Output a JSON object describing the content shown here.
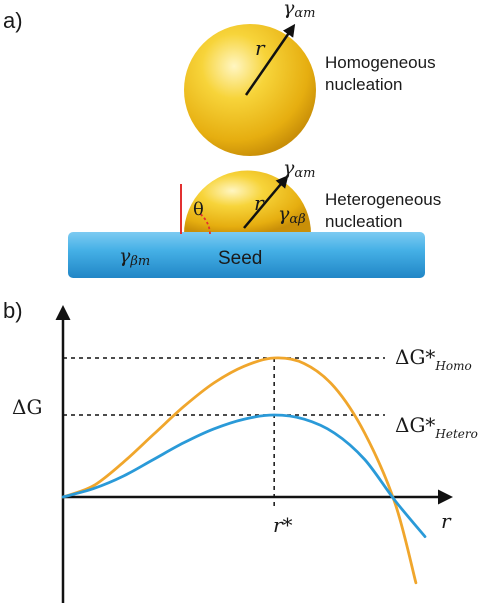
{
  "panel_a": {
    "label": "a)",
    "homogeneous": {
      "radius_label": "r",
      "gamma_label": "γ",
      "gamma_sub": "αm",
      "caption_line1": "Homogeneous",
      "caption_line2": "nucleation"
    },
    "heterogeneous": {
      "radius_label": "r",
      "gamma_top": "γ",
      "gamma_top_sub": "αm",
      "gamma_inner": "γ",
      "gamma_inner_sub": "αβ",
      "angle_label": "θ",
      "seed_gamma": "γ",
      "seed_gamma_sub": "βm",
      "seed_label": "Seed",
      "caption_line1": "Heterogeneous",
      "caption_line2": "nucleation"
    },
    "colors": {
      "sphere": "#f2c01c",
      "seed": "#3ea9e0",
      "contact_line": "#e23030",
      "angle_arc": "#e23030"
    }
  },
  "panel_b": {
    "label": "b)",
    "y_axis_label": "ΔG",
    "x_axis_label": "r",
    "r_star_label": "r*",
    "homo_label_main": "ΔG*",
    "homo_label_sub": "Homo",
    "hetero_label_main": "ΔG*",
    "hetero_label_sub": "Hetero"
  },
  "chart_data": {
    "type": "line",
    "xlabel": "r",
    "ylabel": "ΔG",
    "x_marker": "r*",
    "xlim": [
      0,
      1.2
    ],
    "ylim": [
      -0.9,
      1.0
    ],
    "series": [
      {
        "name": "ΔG*Homo",
        "color": "#f0a62c",
        "x": [
          0,
          0.1,
          0.2,
          0.3,
          0.4,
          0.5,
          0.6,
          0.7,
          0.8,
          0.9,
          1.0,
          1.1,
          1.17
        ],
        "y": [
          0,
          0.08,
          0.25,
          0.45,
          0.65,
          0.82,
          0.94,
          1.0,
          0.96,
          0.79,
          0.46,
          -0.05,
          -0.78
        ]
      },
      {
        "name": "ΔG*Hetero",
        "color": "#2a9ad8",
        "x": [
          0,
          0.1,
          0.2,
          0.3,
          0.4,
          0.5,
          0.6,
          0.7,
          0.8,
          0.9,
          1.0,
          1.1,
          1.2
        ],
        "y": [
          0,
          0.06,
          0.15,
          0.27,
          0.39,
          0.49,
          0.56,
          0.59,
          0.56,
          0.46,
          0.27,
          -0.03,
          -0.36
        ]
      }
    ]
  }
}
